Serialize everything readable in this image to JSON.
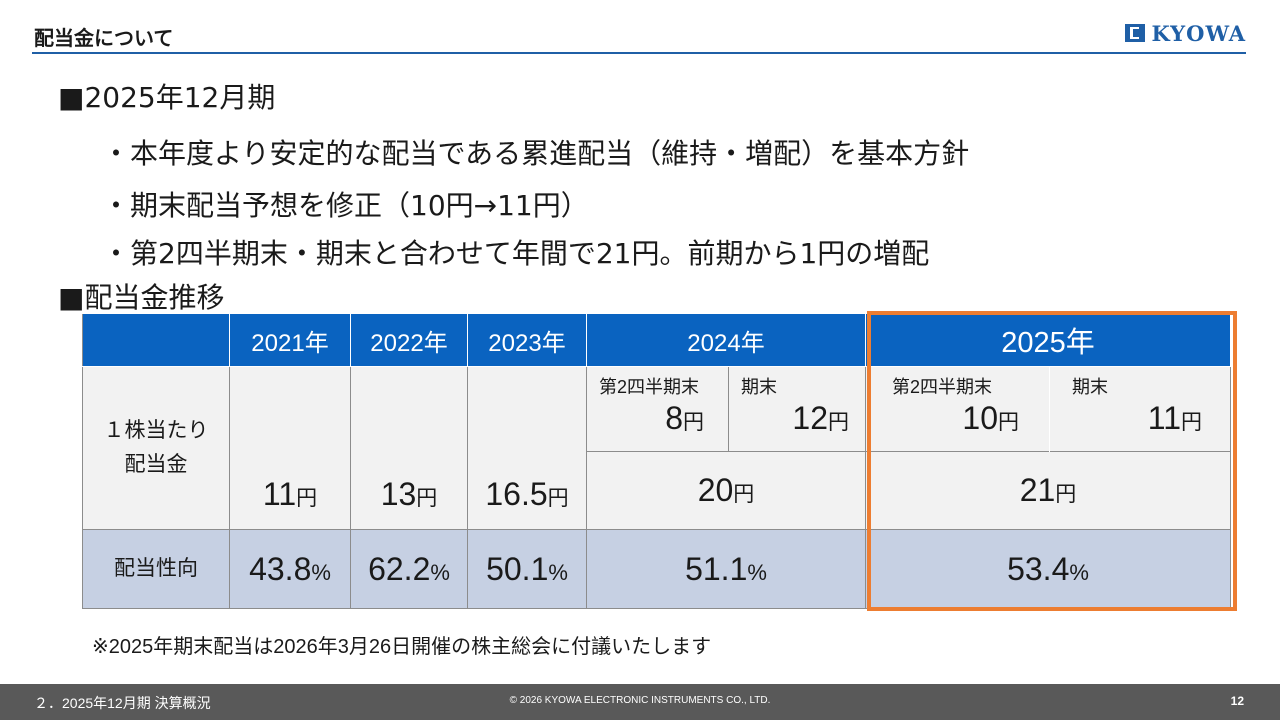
{
  "header": {
    "title": "配当金について",
    "logo_text": "KYOWA"
  },
  "section1": {
    "heading": "■2025年12月期",
    "bullets": [
      "・本年度より安定的な配当である累進配当（維持・増配）を基本方針",
      "・期末配当予想を修正（10円→11円）",
      "・第2四半期末・期末と合わせて年間で21円。前期から1円の増配"
    ]
  },
  "section2": {
    "heading": "■配当金推移"
  },
  "table": {
    "years": [
      "2021年",
      "2022年",
      "2023年",
      "2024年",
      "2025年"
    ],
    "row1_label": [
      "１株当たり",
      "配当金"
    ],
    "row2_label": "配当性向",
    "yen": "円",
    "pct": "%",
    "q2_label": "第2四半期末",
    "ye_label": "期末",
    "annual": [
      "11",
      "13",
      "16.5",
      "20",
      "21"
    ],
    "split_2024": {
      "q2": "8",
      "ye": "12"
    },
    "split_2025": {
      "q2": "10",
      "ye": "11"
    },
    "payout": [
      "43.8",
      "62.2",
      "50.1",
      "51.1",
      "53.4"
    ]
  },
  "note": "※2025年期末配当は2026年3月26日開催の株主総会に付議いたします",
  "footer": {
    "section": "２．2025年12月期 決算概況",
    "copyright": "© 2026 KYOWA ELECTRONIC INSTRUMENTS CO., LTD.",
    "page": "12"
  },
  "colors": {
    "header_blue": "#0a63c0",
    "highlight_orange": "#ed7d31",
    "ratio_row": "#c6d0e3",
    "footer_gray": "#595959"
  }
}
